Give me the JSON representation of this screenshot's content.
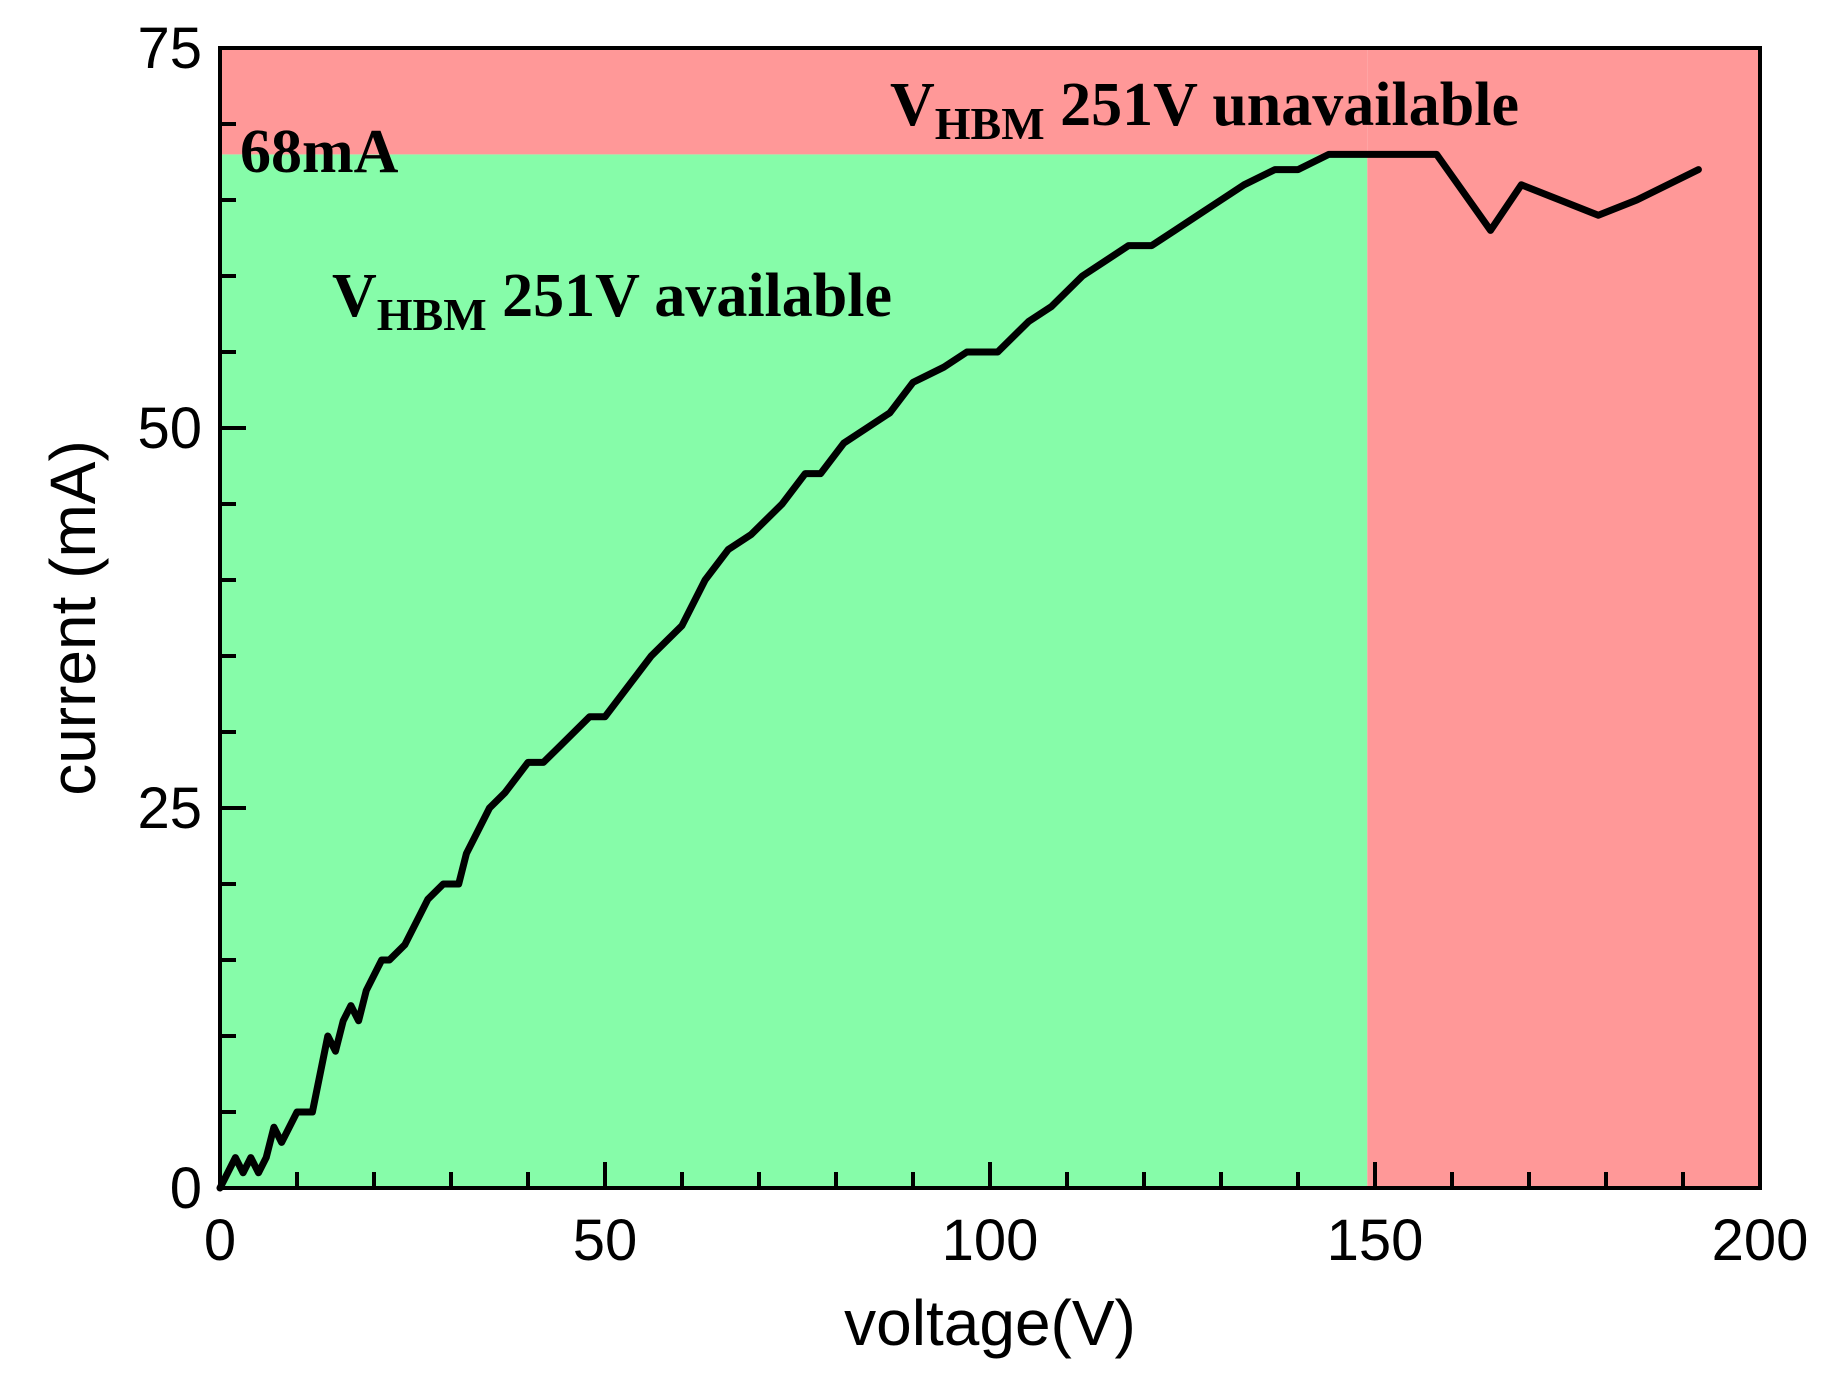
{
  "chart_data": {
    "type": "line",
    "title": "",
    "xlabel": "voltage(V)",
    "ylabel": "current (mA)",
    "xlim": [
      0,
      200
    ],
    "ylim": [
      0,
      75
    ],
    "xticks": [
      0,
      50,
      100,
      150,
      200
    ],
    "yticks": [
      0,
      25,
      50,
      75
    ],
    "xtick_labels": [
      "0",
      "50",
      "100",
      "150",
      "200"
    ],
    "ytick_labels": [
      "0",
      "25",
      "50",
      "75"
    ],
    "x_minor_step": 10,
    "y_minor_step": 5,
    "grid": false,
    "colors": {
      "available": "#86fca9",
      "unavailable": "#ff9898",
      "line": "#000000"
    },
    "regions": [
      {
        "name": "available",
        "x": [
          0,
          149
        ],
        "y": [
          0,
          68
        ]
      },
      {
        "name": "unavailable",
        "x": [
          149,
          200
        ],
        "y": [
          0,
          75
        ]
      },
      {
        "name": "unavailable-top",
        "x": [
          0,
          149
        ],
        "y": [
          68,
          75
        ]
      }
    ],
    "threshold_current": 68,
    "annotations": {
      "threshold_label": "68mA",
      "available": {
        "main": "V",
        "sub": "HBM",
        "rest": " 251V available"
      },
      "unavailable": {
        "main": "V",
        "sub": "HBM",
        "rest": " 251V unavailable"
      }
    },
    "series": [
      {
        "name": "current",
        "x": [
          0,
          1,
          2,
          3,
          4,
          5,
          6,
          7,
          8,
          10,
          12,
          14,
          15,
          16,
          17,
          18,
          19,
          20,
          21,
          22,
          24,
          26,
          27,
          29,
          31,
          32,
          33,
          35,
          37,
          40,
          42,
          44,
          46,
          48,
          50,
          53,
          56,
          60,
          63,
          66,
          69,
          73,
          76,
          78,
          81,
          84,
          87,
          90,
          94,
          97,
          101,
          105,
          108,
          112,
          115,
          118,
          121,
          124,
          127,
          130,
          133,
          137,
          140,
          144,
          147,
          149,
          151,
          154,
          158,
          165,
          169,
          174,
          179,
          184,
          192
        ],
        "y": [
          0,
          1,
          2,
          1,
          2,
          1,
          2,
          4,
          3,
          5,
          5,
          10,
          9,
          11,
          12,
          11,
          13,
          14,
          15,
          15,
          16,
          18,
          19,
          20,
          20,
          22,
          23,
          25,
          26,
          28,
          28,
          29,
          30,
          31,
          31,
          33,
          35,
          37,
          40,
          42,
          43,
          45,
          47,
          47,
          49,
          50,
          51,
          53,
          54,
          55,
          55,
          57,
          58,
          60,
          61,
          62,
          62,
          63,
          64,
          65,
          66,
          67,
          67,
          68,
          68,
          68,
          68,
          68,
          68,
          63,
          66,
          65,
          64,
          65,
          67
        ]
      }
    ]
  }
}
